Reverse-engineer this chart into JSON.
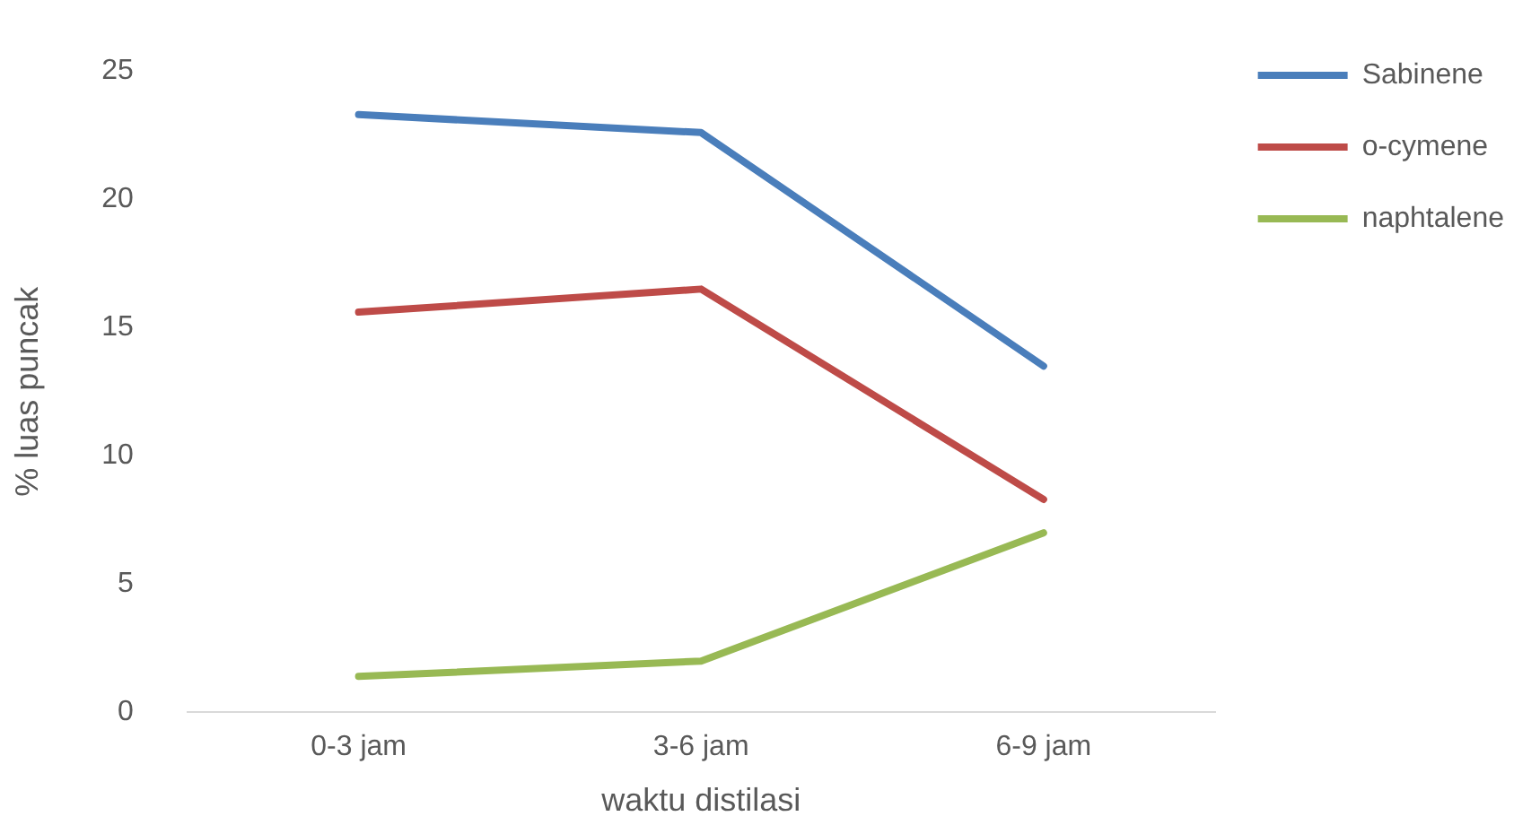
{
  "chart_data": {
    "type": "line",
    "xlabel": "waktu distilasi",
    "ylabel": "% luas puncak",
    "categories": [
      "0-3 jam",
      "3-6 jam",
      "6-9 jam"
    ],
    "series": [
      {
        "name": "Sabinene",
        "color": "#4a7ebb",
        "values": [
          23.3,
          22.6,
          13.5
        ]
      },
      {
        "name": "o-cymene",
        "color": "#be4b48",
        "values": [
          15.6,
          16.5,
          8.3
        ]
      },
      {
        "name": "naphtalene",
        "color": "#98b954",
        "values": [
          1.4,
          2.0,
          7.0
        ]
      }
    ],
    "ylim": [
      0,
      25
    ],
    "yticks": [
      0,
      5,
      10,
      15,
      20,
      25
    ],
    "grid": false,
    "legend": "top right",
    "marker": "none",
    "line_style": "solid"
  }
}
